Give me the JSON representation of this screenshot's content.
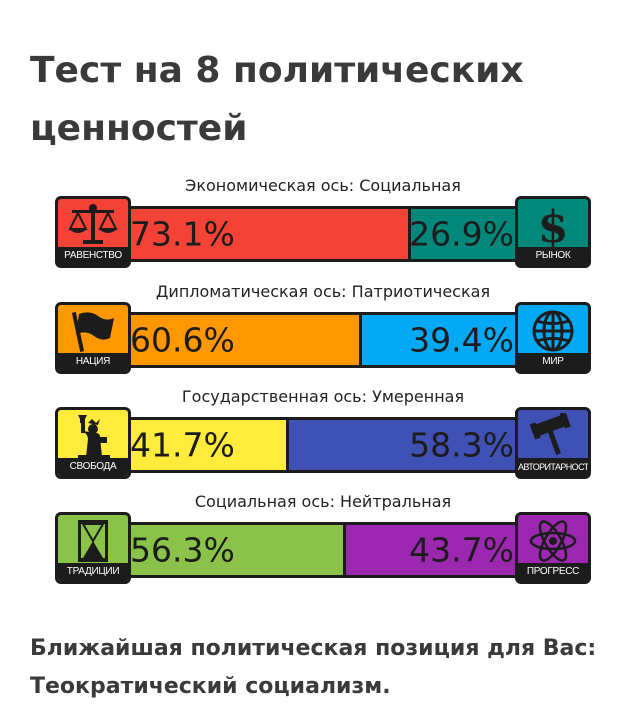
{
  "title": "Тест на 8 политических ценностей",
  "axes": [
    {
      "label": "Экономическая ось: Социальная",
      "left": {
        "name": "РАВЕНСТВО",
        "icon": "scales-icon",
        "percent": "73.1%",
        "value": 73.1,
        "color": "#f44336"
      },
      "right": {
        "name": "РЫНОК",
        "icon": "dollar-icon",
        "percent": "26.9%",
        "value": 26.9,
        "color": "#00897b"
      }
    },
    {
      "label": "Дипломатическая ось: Патриотическая",
      "left": {
        "name": "НАЦИЯ",
        "icon": "flag-icon",
        "percent": "60.6%",
        "value": 60.6,
        "color": "#ff9800"
      },
      "right": {
        "name": "МИР",
        "icon": "globe-icon",
        "percent": "39.4%",
        "value": 39.4,
        "color": "#03a9f4"
      }
    },
    {
      "label": "Государственная ось: Умеренная",
      "left": {
        "name": "СВОБОДА",
        "icon": "statue-of-liberty-icon",
        "percent": "41.7%",
        "value": 41.7,
        "color": "#ffeb3b"
      },
      "right": {
        "name": "АВТОРИТАРНОСТЬ",
        "icon": "gavel-icon",
        "percent": "58.3%",
        "value": 58.3,
        "color": "#3f51b5"
      }
    },
    {
      "label": "Социальная ось: Нейтральная",
      "left": {
        "name": "ТРАДИЦИИ",
        "icon": "hourglass-icon",
        "percent": "56.3%",
        "value": 56.3,
        "color": "#8bc34a"
      },
      "right": {
        "name": "ПРОГРЕСС",
        "icon": "atom-icon",
        "percent": "43.7%",
        "value": 43.7,
        "color": "#9c27b0"
      }
    }
  ],
  "result": "Ближайшая политическая позиция для Вас: Теократический социализм."
}
